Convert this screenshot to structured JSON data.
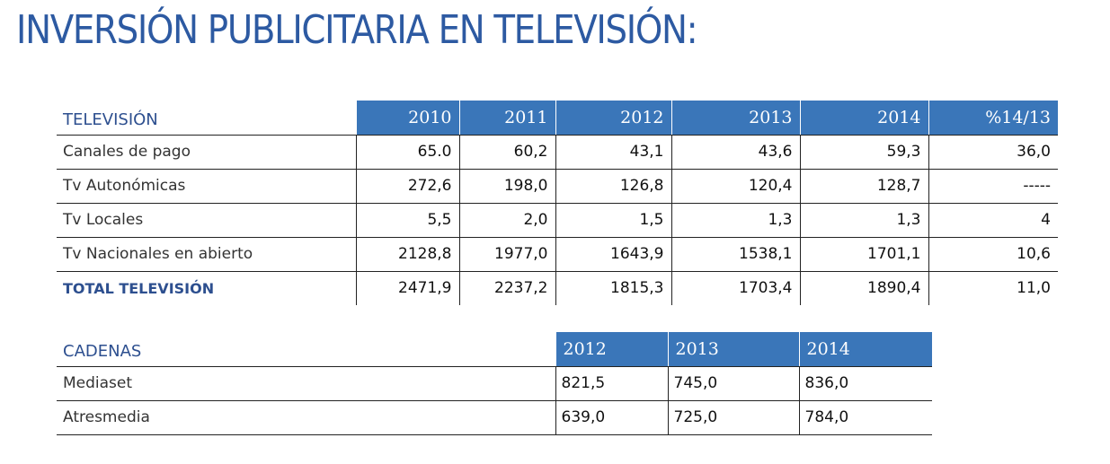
{
  "title": "INVERSIÓN PUBLICITARIA EN TELEVISIÓN:",
  "tv_table": {
    "label_header": "TELEVISIÓN",
    "columns": [
      "2010",
      "2011",
      "2012",
      "2013",
      "2014",
      "%14/13"
    ],
    "rows": [
      {
        "label": "Canales de pago",
        "values": [
          "65.0",
          "60,2",
          "43,1",
          "43,6",
          "59,3",
          "36,0"
        ]
      },
      {
        "label": "Tv Autonómicas",
        "values": [
          "272,6",
          "198,0",
          "126,8",
          "120,4",
          "128,7",
          "-----"
        ]
      },
      {
        "label": "Tv Locales",
        "values": [
          "5,5",
          "2,0",
          "1,5",
          "1,3",
          "1,3",
          "4"
        ]
      },
      {
        "label": "Tv Nacionales  en abierto",
        "values": [
          "2128,8",
          "1977,0",
          "1643,9",
          "1538,1",
          "1701,1",
          "10,6"
        ]
      },
      {
        "label": "TOTAL TELEVISIÓN",
        "values": [
          "2471,9",
          "2237,2",
          "1815,3",
          "1703,4",
          "1890,4",
          "11,0"
        ]
      }
    ]
  },
  "cadenas_table": {
    "label_header": "CADENAS",
    "columns": [
      "2012",
      "2013",
      "2014"
    ],
    "rows": [
      {
        "label": "Mediaset",
        "values": [
          "821,5",
          "745,0",
          "836,0"
        ]
      },
      {
        "label": "Atresmedia",
        "values": [
          "639,0",
          "725,0",
          "784,0"
        ]
      }
    ]
  },
  "colors": {
    "header_blue": "#3a76b9",
    "title_blue": "#2d5aa2"
  }
}
